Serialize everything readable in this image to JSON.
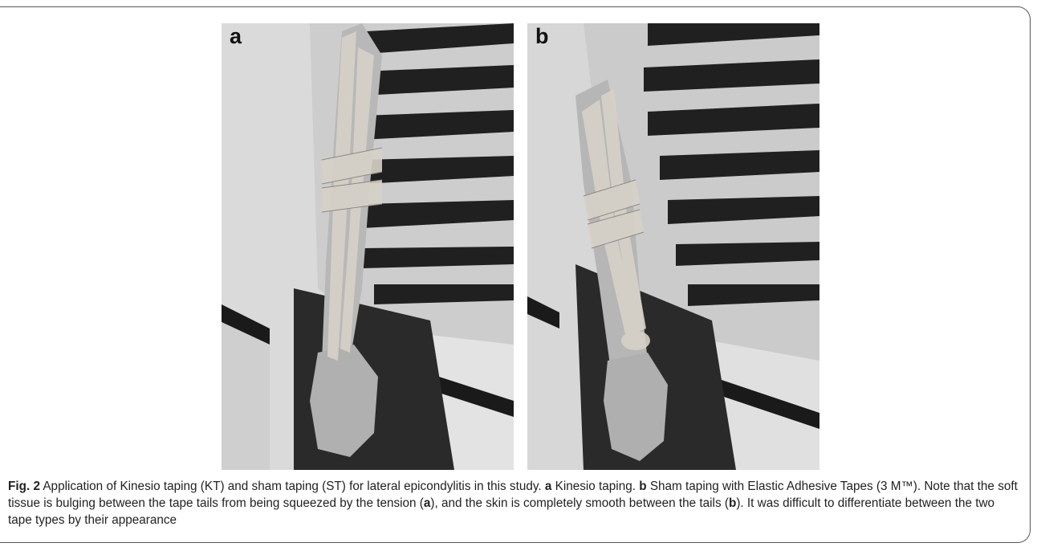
{
  "figure": {
    "panels": [
      {
        "label": "a"
      },
      {
        "label": "b"
      }
    ],
    "caption": {
      "fig_label": "Fig. 2",
      "intro": " Application of Kinesio taping (KT) and sham taping (ST) for lateral epicondylitis in this study. ",
      "a_label": "a",
      "a_text": " Kinesio taping. ",
      "b_label": "b",
      "b_text": " Sham taping with Elastic Adhesive Tapes (3 M™). Note that the soft tissue is bulging between the tape tails from being squeezed by the tension (",
      "a_ref": "a",
      "middle_text": "), and the skin is completely smooth between the tails (",
      "b_ref": "b",
      "end_text": "). It was difficult to differentiate between the two tape types by their appearance"
    }
  }
}
